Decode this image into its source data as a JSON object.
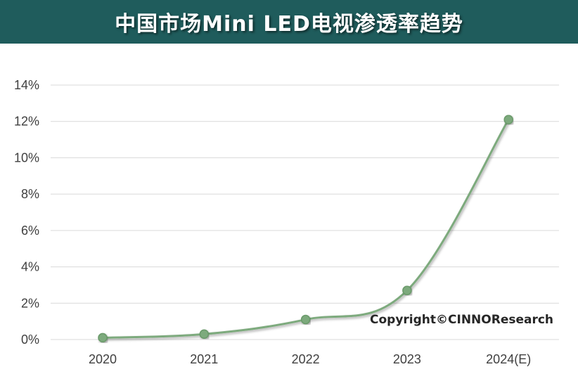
{
  "chart_data": {
    "type": "line",
    "title": "中国市场Mini LED电视渗透率趋势",
    "categories": [
      "2020",
      "2021",
      "2022",
      "2023",
      "2024(E)"
    ],
    "series": [
      {
        "name": "Mini LED电视渗透率",
        "values": [
          0.1,
          0.3,
          1.1,
          2.7,
          12.1
        ]
      }
    ],
    "ylim": [
      0,
      14
    ],
    "ytick_values": [
      0,
      2,
      4,
      6,
      8,
      10,
      12,
      14
    ],
    "ytick_labels": [
      "0%",
      "2%",
      "4%",
      "6%",
      "8%",
      "10%",
      "12%",
      "14%"
    ],
    "xlabel": "",
    "ylabel": "",
    "grid": true,
    "annotation": "Copyright©CINNOResearch",
    "colors": {
      "title_bg": "#1f5c5c",
      "line": "#7daa7d",
      "marker": "#7daa7d",
      "grid": "#d9d9d9"
    }
  }
}
